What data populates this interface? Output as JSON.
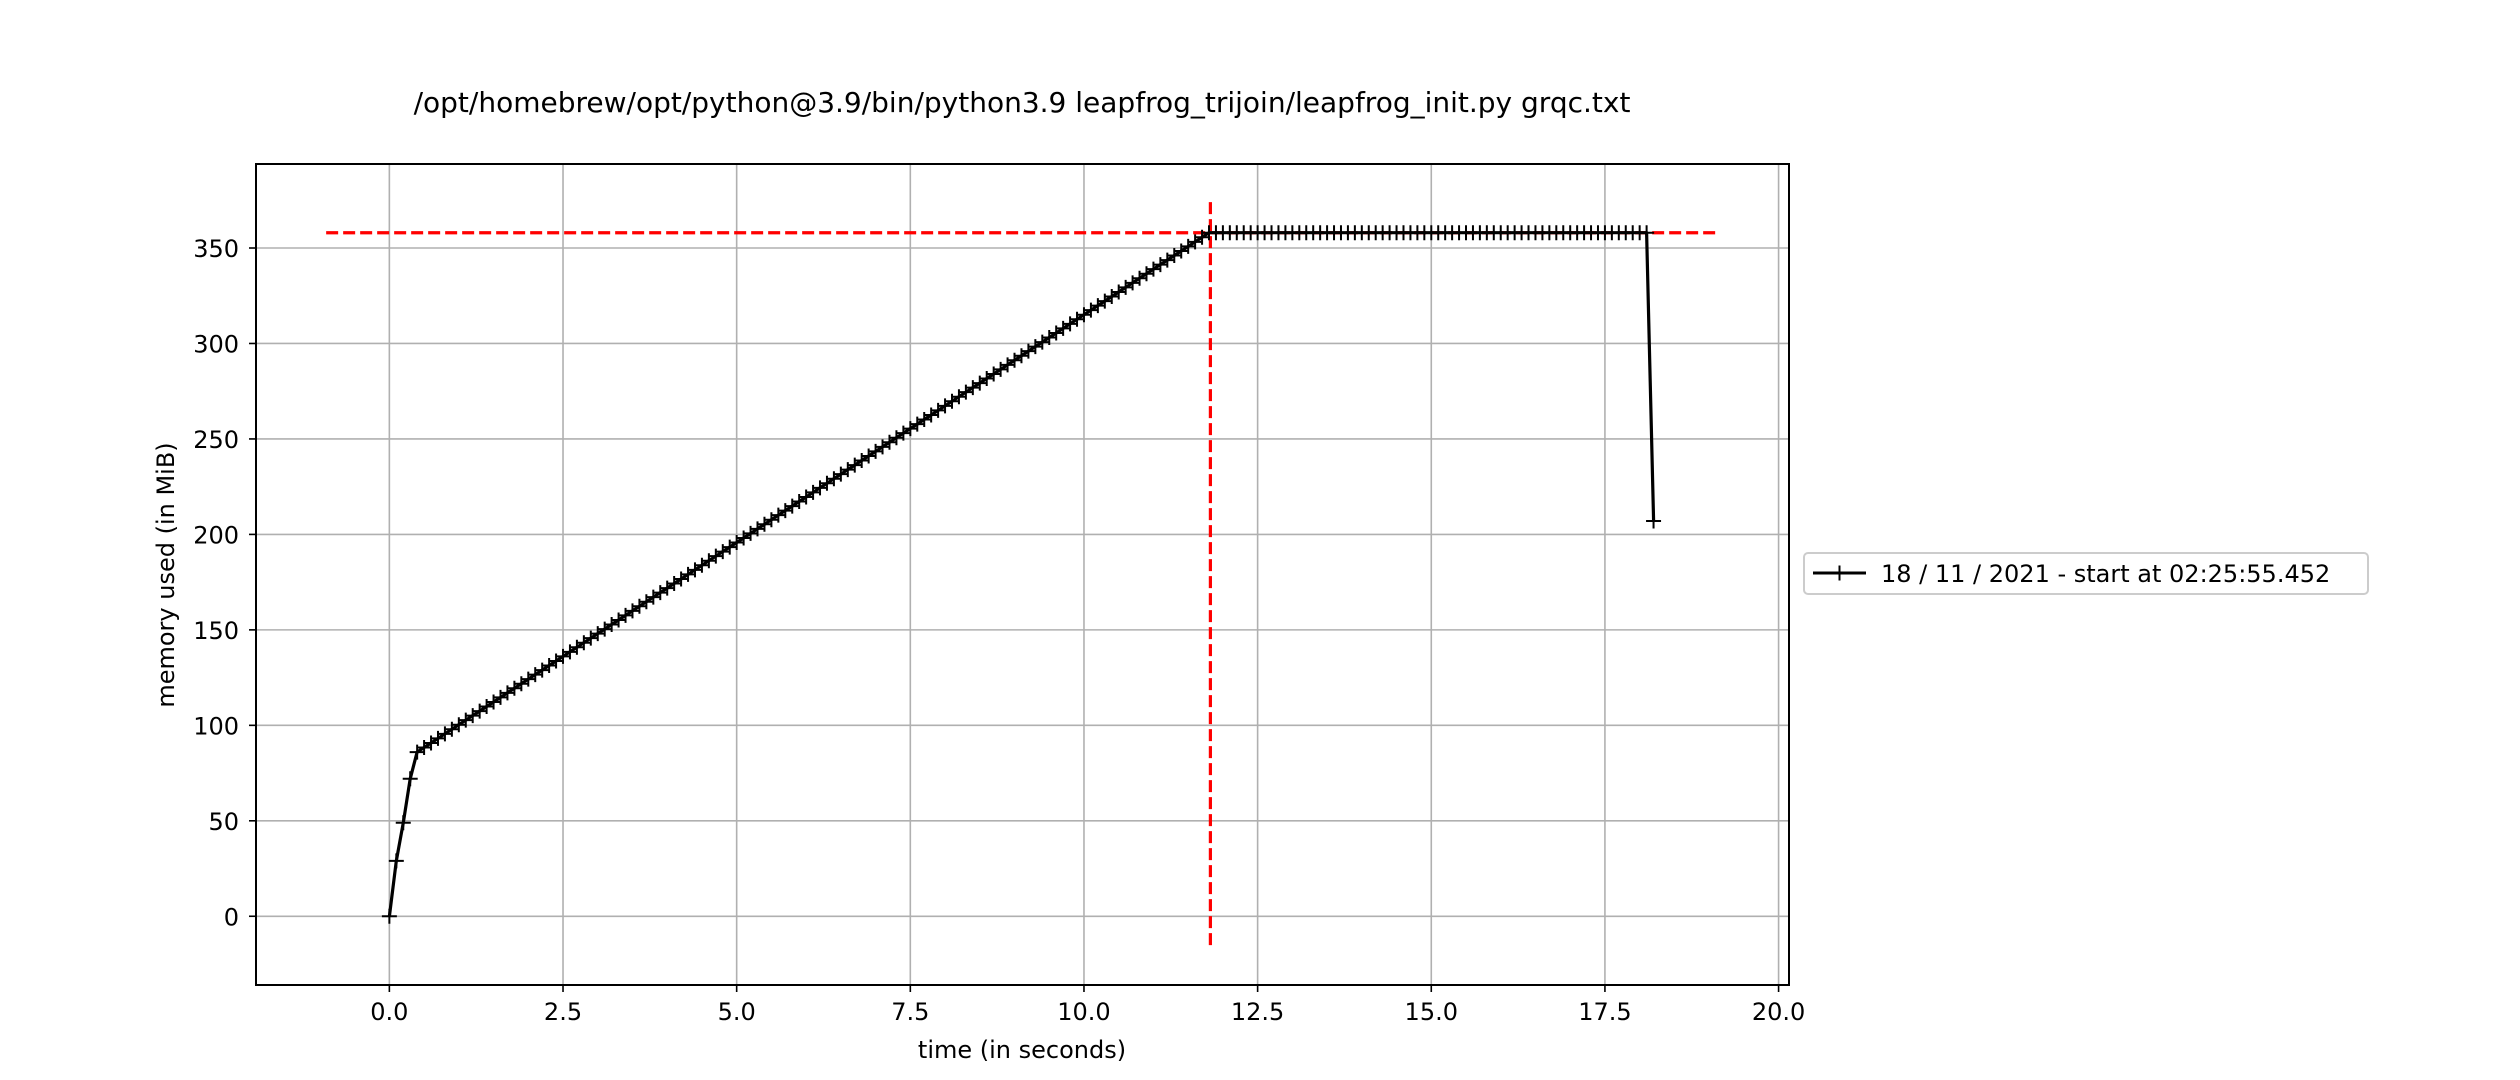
{
  "chart_data": {
    "type": "line",
    "title": "/opt/homebrew/opt/python@3.9/bin/python3.9 leapfrog_trijoin/leapfrog_init.py grqc.txt",
    "xlabel": "time (in seconds)",
    "ylabel": "memory used (in MiB)",
    "xlim": [
      -1.92,
      20.15
    ],
    "ylim": [
      -36,
      394
    ],
    "xticks": [
      0.0,
      2.5,
      5.0,
      7.5,
      10.0,
      12.5,
      15.0,
      17.5,
      20.0
    ],
    "xtick_labels": [
      "0.0",
      "2.5",
      "5.0",
      "7.5",
      "10.0",
      "12.5",
      "15.0",
      "17.5",
      "20.0"
    ],
    "yticks": [
      0,
      50,
      100,
      150,
      200,
      250,
      300,
      350
    ],
    "ytick_labels": [
      "0",
      "50",
      "100",
      "150",
      "200",
      "250",
      "300",
      "350"
    ],
    "grid": true,
    "legend_position": "outside-right",
    "series": [
      {
        "name": "18 / 11 / 2021 - start at 02:25:55.452",
        "color": "#000000",
        "marker": "+",
        "segments": [
          {
            "x": [
              0.0,
              0.1,
              0.2,
              0.3,
              0.4
            ],
            "y": [
              0,
              29,
              49,
              72,
              86
            ]
          },
          {
            "x_start": 0.4,
            "x_end": 11.8,
            "y_start": 86,
            "y_end": 358,
            "points": 115
          },
          {
            "x_start": 11.8,
            "x_end": 18.1,
            "y_start": 358,
            "y_end": 358,
            "points": 64
          },
          {
            "x": [
              18.1,
              18.2
            ],
            "y": [
              358,
              207
            ]
          }
        ]
      }
    ],
    "reference_lines": [
      {
        "orientation": "horizontal",
        "y": 358,
        "x_range": [
          -0.91,
          19.13
        ],
        "color": "#ff0000",
        "style": "dashed"
      },
      {
        "orientation": "vertical",
        "x": 11.82,
        "y_range": [
          -16,
          374
        ],
        "color": "#ff0000",
        "style": "dashed"
      }
    ],
    "colors": {
      "grid": "#b0b0b0",
      "axes": "#000000",
      "series": "#000000",
      "reference": "#ff0000"
    }
  }
}
